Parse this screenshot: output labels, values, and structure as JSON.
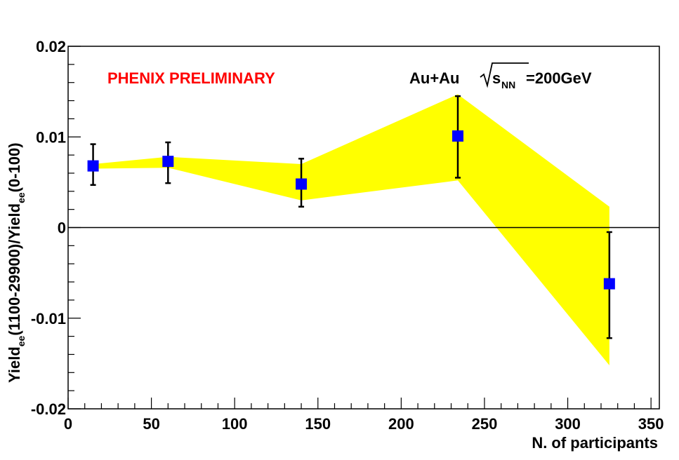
{
  "chart_data": {
    "type": "scatter",
    "title": "",
    "annotations": {
      "preliminary": "PHENIX PRELIMINARY",
      "system_prefix": "Au+Au",
      "system_s": "s",
      "system_sub": "NN",
      "system_suffix": "=200GeV"
    },
    "xlabel": "N. of participants",
    "ylabel": {
      "part1": "Yield",
      "sub1": "ee",
      "part2": "(1100-29900)/Yield",
      "sub2": "ee",
      "part3": "(0-100)"
    },
    "xlim": [
      0,
      355
    ],
    "ylim": [
      -0.02,
      0.02
    ],
    "xticks": [
      0,
      50,
      100,
      150,
      200,
      250,
      300,
      350
    ],
    "xtick_labels": [
      "0",
      "50",
      "100",
      "150",
      "200",
      "250",
      "300",
      "350"
    ],
    "yticks": [
      -0.02,
      -0.01,
      0,
      0.01,
      0.02
    ],
    "ytick_labels": [
      "-0.02",
      "-0.01",
      "0",
      "0.01",
      "0.02"
    ],
    "zero_line": true,
    "grid": false,
    "colors": {
      "marker": "#0000ff",
      "band": "#ffff00",
      "preliminary": "#ff0000",
      "axes": "#000000"
    },
    "series": [
      {
        "x": [
          15,
          60,
          140,
          234,
          325
        ],
        "y": [
          0.0068,
          0.0073,
          0.0048,
          0.0101,
          -0.0062
        ],
        "err_low": [
          0.0021,
          0.0024,
          0.0025,
          0.0046,
          0.006
        ],
        "err_high": [
          0.0024,
          0.0021,
          0.0028,
          0.0044,
          0.0057
        ]
      }
    ],
    "systematic_band": {
      "x": [
        15,
        60,
        140,
        234,
        325
      ],
      "upper": [
        0.007,
        0.0078,
        0.007,
        0.0147,
        0.0023
      ],
      "lower": [
        0.0065,
        0.0066,
        0.003,
        0.0052,
        -0.0152
      ]
    }
  }
}
